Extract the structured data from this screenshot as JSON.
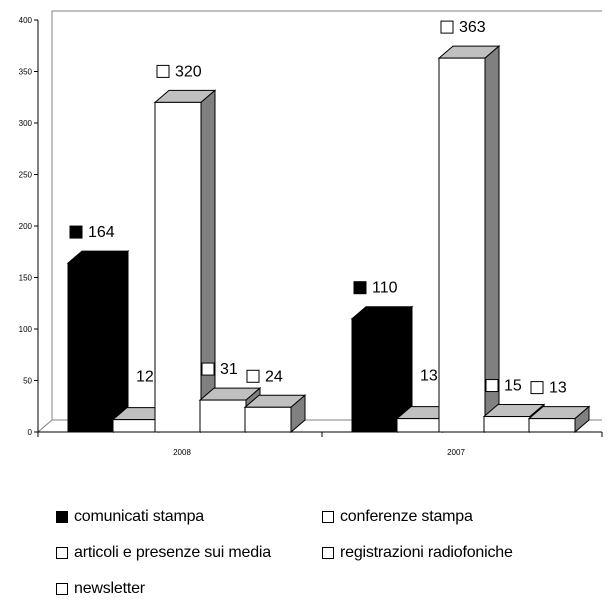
{
  "chart_data": {
    "type": "bar",
    "categories": [
      "2008",
      "2007"
    ],
    "series": [
      {
        "name": "comunicati stampa",
        "values": [
          164,
          110
        ],
        "fill": "#000000"
      },
      {
        "name": "conferenze stampa",
        "values": [
          12,
          13
        ],
        "fill": "#ffffff"
      },
      {
        "name": "articoli e presenze sui media",
        "values": [
          320,
          363
        ],
        "fill": "#ffffff"
      },
      {
        "name": "registrazioni radiofoniche",
        "values": [
          31,
          15
        ],
        "fill": "#ffffff"
      },
      {
        "name": "newsletter",
        "values": [
          24,
          13
        ],
        "fill": "#ffffff"
      }
    ],
    "y_ticks": [
      0,
      50,
      100,
      150,
      200,
      250,
      300,
      350,
      400
    ],
    "ylim": [
      0,
      400
    ],
    "title": "",
    "xlabel": "",
    "ylabel": "",
    "grid": false,
    "three_d": true,
    "side_color": "#808080",
    "top_color": "#c0c0c0",
    "legend_position": "bottom"
  }
}
